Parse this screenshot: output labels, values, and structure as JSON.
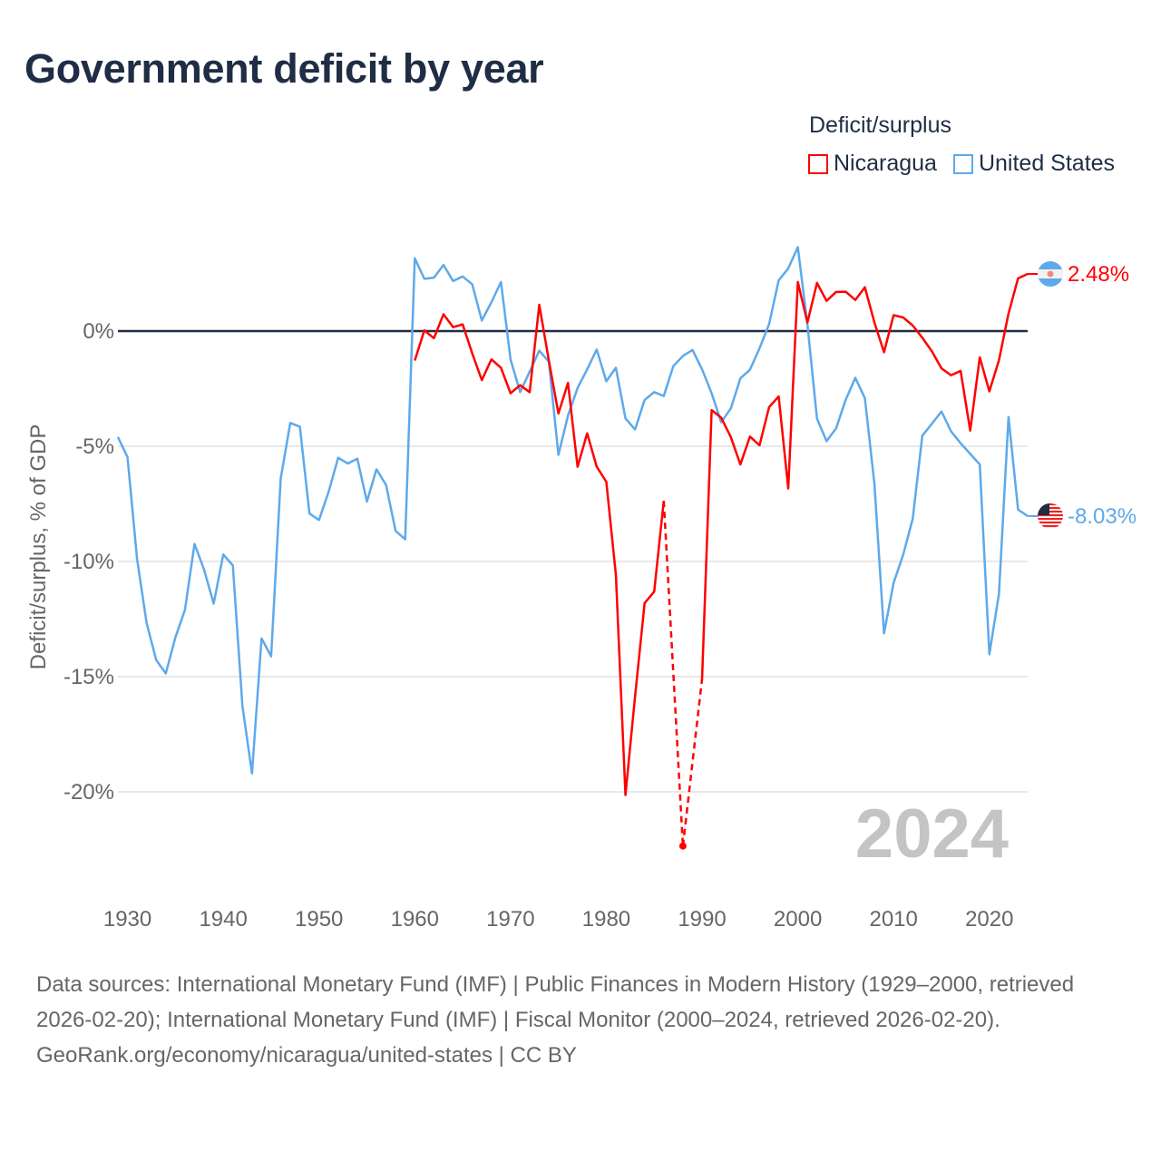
{
  "title": "Government deficit by year",
  "legend": {
    "title": "Deficit/surplus",
    "items": [
      {
        "label": "Nicaragua",
        "color": "#ff0000"
      },
      {
        "label": "United States",
        "color": "#5ea9ea"
      }
    ]
  },
  "year_watermark": "2024",
  "end_labels": {
    "nicaragua": "2.48%",
    "united_states": "-8.03%"
  },
  "flags": {
    "nicaragua": "nicaragua-flag-icon",
    "united_states": "us-flag-icon"
  },
  "footer": {
    "sources": "Data sources: International Monetary Fund (IMF) | Public Finances in Modern History (1929–2000, retrieved 2026-02-20); International Monetary Fund (IMF) | Fiscal Monitor (2000–2024, retrieved 2026-02-20).",
    "credit": "GeoRank.org/economy/nicaragua/united-states | CC BY"
  },
  "chart_data": {
    "type": "line",
    "title": "Government deficit by year",
    "xlabel": "",
    "ylabel": "Deficit/surplus, % of GDP",
    "xlim": [
      1929,
      2024
    ],
    "ylim": [
      -24,
      4
    ],
    "x_ticks": [
      1930,
      1940,
      1950,
      1960,
      1970,
      1980,
      1990,
      2000,
      2010,
      2020
    ],
    "x_tick_labels": [
      "1930",
      "1940",
      "1950",
      "1960",
      "1970",
      "1980",
      "1990",
      "2000",
      "2010",
      "2020"
    ],
    "y_ticks": [
      0,
      -5,
      -10,
      -15,
      -20
    ],
    "y_tick_labels": [
      "0%",
      "-5%",
      "-10%",
      "-15%",
      "-20%"
    ],
    "grid": true,
    "legend_position": "top-right",
    "x_start": 1929,
    "series": [
      {
        "name": "Nicaragua",
        "color": "#ff0000",
        "start_year": 1960,
        "values": [
          -1.28,
          0.03,
          -0.31,
          0.73,
          0.17,
          0.29,
          -0.97,
          -2.13,
          -1.23,
          -1.59,
          -2.7,
          -2.35,
          -2.65,
          1.14,
          -1.28,
          -3.58,
          -2.25,
          -5.89,
          -4.44,
          -5.89,
          -6.54,
          -10.58,
          -20.14,
          -15.87,
          -11.81,
          -11.31,
          -7.37,
          null,
          -22.35,
          null,
          -15.1,
          -3.43,
          -3.76,
          -4.6,
          -5.79,
          -4.58,
          -4.96,
          -3.3,
          -2.84,
          -6.83,
          2.13,
          0.37,
          2.09,
          1.31,
          1.7,
          1.71,
          1.35,
          1.9,
          0.37,
          -0.92,
          0.69,
          0.59,
          0.24,
          -0.29,
          -0.88,
          -1.62,
          -1.92,
          -1.73,
          -4.32,
          -1.14,
          -2.62,
          -1.27,
          0.76,
          2.29,
          2.48
        ]
      },
      {
        "name": "United States",
        "color": "#5ea9ea",
        "start_year": 1929,
        "values": [
          -4.6,
          -5.47,
          -9.89,
          -12.68,
          -14.28,
          -14.86,
          -13.3,
          -12.1,
          -9.24,
          -10.36,
          -11.83,
          -9.7,
          -10.17,
          -16.26,
          -19.2,
          -13.34,
          -14.12,
          -6.4,
          -3.99,
          -4.15,
          -7.92,
          -8.2,
          -6.98,
          -5.5,
          -5.75,
          -5.54,
          -7.4,
          -6.0,
          -6.68,
          -8.68,
          -9.04,
          3.16,
          2.27,
          2.32,
          2.87,
          2.17,
          2.37,
          2.03,
          0.46,
          1.25,
          2.13,
          -1.23,
          -2.65,
          -1.76,
          -0.85,
          -1.33,
          -5.37,
          -3.67,
          -2.47,
          -1.66,
          -0.8,
          -2.18,
          -1.59,
          -3.79,
          -4.27,
          -2.99,
          -2.65,
          -2.82,
          -1.52,
          -1.08,
          -0.82,
          -1.66,
          -2.7,
          -3.96,
          -3.36,
          -2.05,
          -1.68,
          -0.75,
          0.3,
          2.2,
          2.72,
          3.64,
          0.3,
          -3.8,
          -4.78,
          -4.22,
          -2.98,
          -2.03,
          -2.91,
          -6.64,
          -13.12,
          -10.93,
          -9.71,
          -8.14,
          -4.54,
          -4.02,
          -3.49,
          -4.35,
          -4.87,
          -5.33,
          -5.79,
          -14.03,
          -11.41,
          -3.73,
          -7.75,
          -8.03
        ]
      }
    ]
  }
}
